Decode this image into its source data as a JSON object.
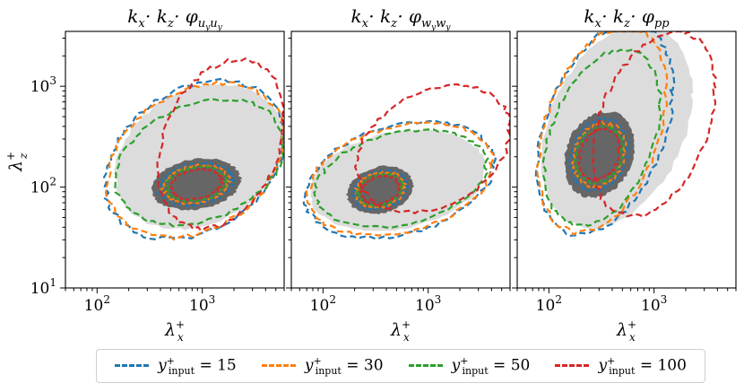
{
  "chart_data": [
    {
      "type": "contour",
      "title": "k_x · k_z · φ_{u_y u_y}",
      "xlabel": "λ_x^+",
      "ylabel": "λ_z^+",
      "xscale": "log",
      "yscale": "log",
      "xlim": [
        50,
        6000
      ],
      "ylim": [
        10,
        3500
      ],
      "xticks": [
        "10^2",
        "10^3"
      ],
      "yticks": [
        "10^1",
        "10^2",
        "10^3"
      ],
      "levels": {
        "background_fill_gray": {
          "x_range": [
            150,
            6000
          ],
          "z_range": [
            40,
            1000
          ]
        },
        "dark_core": {
          "center": [
            750,
            110
          ],
          "x_range": [
            330,
            2300
          ],
          "z_range": [
            60,
            190
          ]
        }
      },
      "series": [
        {
          "name": "y_input^+ = 15",
          "color": "#1f77b4",
          "outer_contour": {
            "x_range": [
              120,
              6000
            ],
            "z_range": [
              33,
              1050
            ]
          }
        },
        {
          "name": "y_input^+ = 30",
          "color": "#ff7f0e",
          "outer_contour": {
            "x_range": [
              125,
              6000
            ],
            "z_range": [
              34,
              1000
            ]
          }
        },
        {
          "name": "y_input^+ = 50",
          "color": "#2ca02c",
          "outer_contour": {
            "x_range": [
              150,
              6000
            ],
            "z_range": [
              45,
              700
            ]
          }
        },
        {
          "name": "y_input^+ = 100",
          "color": "#d62728",
          "outer_contour": {
            "x_range": [
              380,
              6000
            ],
            "z_range": [
              42,
              1700
            ]
          }
        }
      ],
      "grid": false
    },
    {
      "type": "contour",
      "title": "k_x · k_z · φ_{w_y w_y}",
      "xlabel": "λ_x^+",
      "ylabel": "",
      "xscale": "log",
      "yscale": "log",
      "xlim": [
        50,
        6000
      ],
      "ylim": [
        10,
        3500
      ],
      "xticks": [
        "10^2",
        "10^3"
      ],
      "levels": {
        "background_fill_gray": {
          "x_range": [
            75,
            3500
          ],
          "z_range": [
            38,
            360
          ]
        },
        "dark_core": {
          "center": [
            300,
            90
          ],
          "x_range": [
            170,
            720
          ],
          "z_range": [
            55,
            160
          ]
        }
      },
      "series": [
        {
          "name": "y_input^+ = 15",
          "color": "#1f77b4",
          "outer_contour": {
            "x_range": [
              68,
              4200
            ],
            "z_range": [
              33,
              420
            ]
          }
        },
        {
          "name": "y_input^+ = 30",
          "color": "#ff7f0e",
          "outer_contour": {
            "x_range": [
              72,
              4100
            ],
            "z_range": [
              35,
              410
            ]
          }
        },
        {
          "name": "y_input^+ = 50",
          "color": "#2ca02c",
          "outer_contour": {
            "x_range": [
              85,
              3600
            ],
            "z_range": [
              42,
              350
            ]
          }
        },
        {
          "name": "y_input^+ = 100",
          "color": "#d62728",
          "outer_contour": {
            "x_range": [
              210,
              6000
            ],
            "z_range": [
              60,
              960
            ]
          }
        }
      ],
      "grid": false
    },
    {
      "type": "contour",
      "title": "k_x · k_z · φ_{pp}",
      "xlabel": "λ_x^+",
      "ylabel": "",
      "xscale": "log",
      "yscale": "log",
      "xlim": [
        50,
        6000
      ],
      "ylim": [
        10,
        3500
      ],
      "xticks": [
        "10^2",
        "10^3"
      ],
      "levels": {
        "background_fill_gray": {
          "x_range": [
            85,
            2300
          ],
          "z_range": [
            45,
            3500
          ]
        },
        "dark_core": {
          "center": [
            280,
            180
          ],
          "x_range": [
            140,
            650
          ],
          "z_range": [
            80,
            550
          ]
        }
      },
      "series": [
        {
          "name": "y_input^+ = 15",
          "color": "#1f77b4",
          "outer_contour": {
            "x_range": [
              78,
              1500
            ],
            "z_range": [
              40,
              3500
            ]
          }
        },
        {
          "name": "y_input^+ = 30",
          "color": "#ff7f0e",
          "outer_contour": {
            "x_range": [
              80,
              1300
            ],
            "z_range": [
              42,
              3300
            ]
          }
        },
        {
          "name": "y_input^+ = 50",
          "color": "#2ca02c",
          "outer_contour": {
            "x_range": [
              90,
              1150
            ],
            "z_range": [
              48,
              2000
            ]
          }
        },
        {
          "name": "y_input^+ = 100",
          "color": "#d62728",
          "outer_contour": {
            "x_range": [
              260,
              3800
            ],
            "z_range": [
              60,
              3000
            ]
          }
        }
      ],
      "grid": false
    }
  ],
  "legend": {
    "placement": "bottom",
    "entries": [
      {
        "label": "y",
        "sup": "+",
        "sub": "input",
        "value": " = 15",
        "color": "#1f77b4"
      },
      {
        "label": "y",
        "sup": "+",
        "sub": "input",
        "value": " = 30",
        "color": "#ff7f0e"
      },
      {
        "label": "y",
        "sup": "+",
        "sub": "input",
        "value": " = 50",
        "color": "#2ca02c"
      },
      {
        "label": "y",
        "sup": "+",
        "sub": "input",
        "value": " = 100",
        "color": "#d62728"
      }
    ]
  },
  "colors": {
    "fill_light": "#dcdcdc",
    "fill_dark": "#666666"
  }
}
